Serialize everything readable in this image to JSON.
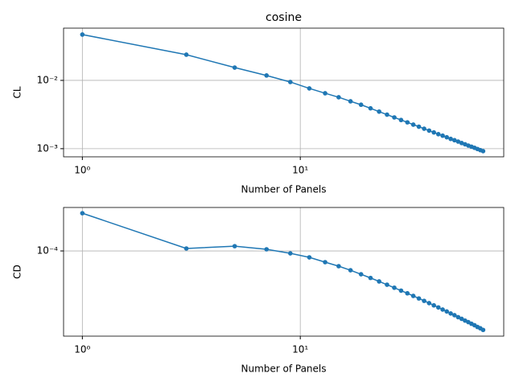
{
  "chart_data": [
    {
      "type": "line",
      "title": "cosine",
      "x_label": "Number of Panels",
      "y_label": "CL",
      "xscale": "log",
      "yscale": "log",
      "grid": true,
      "markers": true,
      "color": "#1f77b4",
      "x": [
        1,
        3,
        5,
        7,
        9,
        11,
        13,
        15,
        17,
        19,
        21,
        23,
        25,
        27,
        29,
        31,
        33,
        35,
        37,
        39,
        41,
        43,
        45,
        47,
        49,
        51,
        53,
        55,
        57,
        59,
        61,
        63,
        65,
        67,
        69
      ],
      "values": [
        0.0469,
        0.0238,
        0.0154,
        0.0118,
        0.00947,
        0.00763,
        0.00648,
        0.00566,
        0.00494,
        0.0044,
        0.0039,
        0.00349,
        0.00315,
        0.00287,
        0.00263,
        0.00243,
        0.00225,
        0.0021,
        0.00196,
        0.00184,
        0.00173,
        0.00163,
        0.00155,
        0.00147,
        0.00139,
        0.00133,
        0.00127,
        0.00121,
        0.00116,
        0.00111,
        0.00107,
        0.00103,
        0.000989,
        0.000953,
        0.00092
      ],
      "xlim": [
        0.82,
        85.8
      ],
      "ylim": [
        0.00076,
        0.0582
      ],
      "xticks": [
        {
          "value": 1,
          "label": "10⁰"
        },
        {
          "value": 10,
          "label": "10¹"
        }
      ],
      "yticks": [
        {
          "value": 0.001,
          "label": "10⁻³"
        },
        {
          "value": 0.01,
          "label": "10⁻²"
        }
      ]
    },
    {
      "type": "line",
      "x_label": "Number of Panels",
      "y_label": "CD",
      "xscale": "log",
      "yscale": "log",
      "grid": true,
      "markers": true,
      "color": "#1f77b4",
      "x": [
        1,
        3,
        5,
        7,
        9,
        11,
        13,
        15,
        17,
        19,
        21,
        23,
        25,
        27,
        29,
        31,
        33,
        35,
        37,
        39,
        41,
        43,
        45,
        47,
        49,
        51,
        53,
        55,
        57,
        59,
        61,
        63,
        65,
        67,
        69
      ],
      "values": [
        0.000246,
        0.000106,
        0.000112,
        0.000104,
        9.44e-05,
        8.58e-05,
        7.65e-05,
        6.95e-05,
        6.31e-05,
        5.73e-05,
        5.25e-05,
        4.83e-05,
        4.47e-05,
        4.16e-05,
        3.88e-05,
        3.64e-05,
        3.42e-05,
        3.22e-05,
        3.04e-05,
        2.88e-05,
        2.73e-05,
        2.6e-05,
        2.47e-05,
        2.36e-05,
        2.25e-05,
        2.16e-05,
        2.06e-05,
        1.98e-05,
        1.9e-05,
        1.83e-05,
        1.76e-05,
        1.7e-05,
        1.63e-05,
        1.58e-05,
        1.52e-05
      ],
      "xlim": [
        0.82,
        85.8
      ],
      "ylim": [
        1.31e-05,
        0.000282
      ],
      "xticks": [
        {
          "value": 1,
          "label": "10⁰"
        },
        {
          "value": 10,
          "label": "10¹"
        }
      ],
      "yticks": [
        {
          "value": 0.0001,
          "label": "10⁻⁴"
        }
      ]
    }
  ]
}
